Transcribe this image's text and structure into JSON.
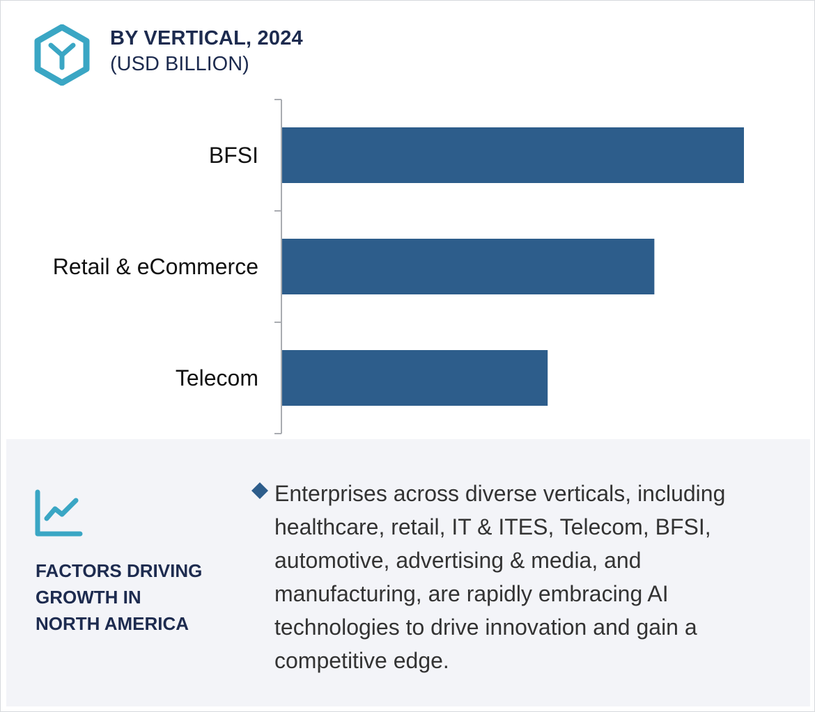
{
  "header": {
    "title": "BY VERTICAL, 2024",
    "subtitle": "(USD BILLION)",
    "icon": "hexagon-y-icon"
  },
  "chart_data": {
    "type": "bar",
    "orientation": "horizontal",
    "categories": [
      "BFSI",
      "Retail & eCommerce",
      "Telecom"
    ],
    "values": [
      100,
      80.6,
      57.5
    ],
    "title": "BY VERTICAL, 2024",
    "subtitle": "(USD BILLION)",
    "xlabel": "",
    "ylabel": "",
    "xlim": [
      0,
      100
    ],
    "grid": false,
    "bar_color": "#2d5d8b",
    "axis_color": "#a9acb1"
  },
  "panel": {
    "icon": "growth-chart-icon",
    "heading_lines": [
      "FACTORS DRIVING",
      "GROWTH IN",
      "NORTH AMERICA"
    ],
    "bullet_icon": "diamond-bullet-icon",
    "text": "Enterprises across diverse verticals, including healthcare, retail, IT & ITES, Telecom, BFSI, automotive, advertising & media, and manufacturing, are rapidly embracing AI technologies to drive innovation and gain a competitive edge."
  },
  "colors": {
    "title": "#1d2b4f",
    "accent": "#3aa6c4",
    "panel_bg": "#f3f4f8",
    "bullet": "#2d5d8b"
  }
}
